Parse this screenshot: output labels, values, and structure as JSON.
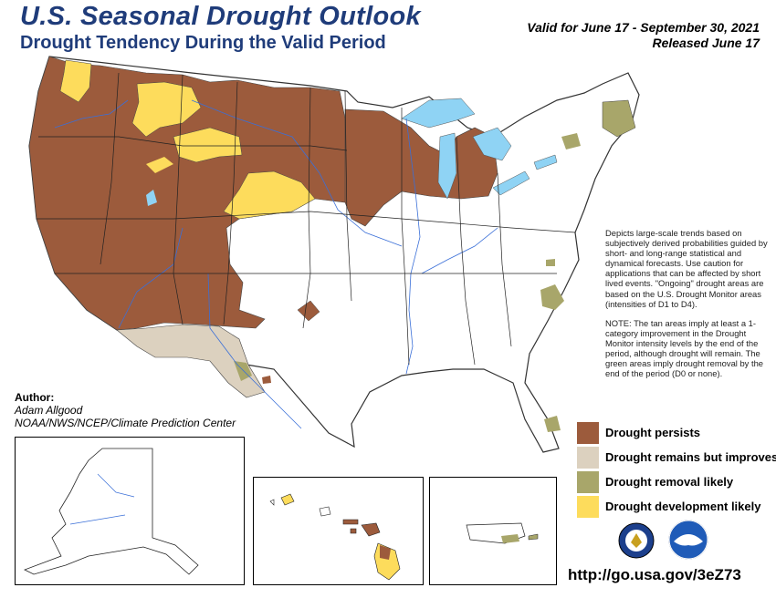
{
  "header": {
    "title": "U.S. Seasonal Drought Outlook",
    "subtitle": "Drought Tendency During the Valid Period",
    "valid_line": "Valid for June 17 - September 30, 2021",
    "released_line": "Released June 17"
  },
  "author": {
    "label": "Author:",
    "name": "Adam Allgood",
    "org": "NOAA/NWS/NCEP/Climate Prediction Center"
  },
  "notes": {
    "para1": "Depicts large-scale trends based on subjectively derived probabilities guided by short- and long-range statistical and dynamical forecasts. Use caution for applications that can be affected by short lived events. \"Ongoing\" drought areas are based on the U.S. Drought Monitor areas (intensities of D1 to D4).",
    "para2": "NOTE: The tan areas imply at least a 1-category improvement in the Drought Monitor intensity levels by the end of the period, although drought will remain. The green areas imply drought removal by the end of the period (D0 or none)."
  },
  "legend": [
    {
      "label": "Drought persists",
      "color": "#9c5b3c"
    },
    {
      "label": "Drought remains but improves",
      "color": "#dcd1bf"
    },
    {
      "label": "Drought removal likely",
      "color": "#a8a66a"
    },
    {
      "label": "Drought development likely",
      "color": "#fddc5c"
    }
  ],
  "colors": {
    "persists": "#9c5b3c",
    "improves": "#dcd1bf",
    "removal": "#a8a66a",
    "development": "#fddc5c",
    "water": "#8fd3f4",
    "river": "#3a6fd8",
    "title": "#1f3c7a"
  },
  "insets": [
    "alaska",
    "hawaii",
    "puerto-rico"
  ],
  "footer": {
    "url": "http://go.usa.gov/3eZ73"
  },
  "logos": [
    "doc-seal-icon",
    "noaa-logo-icon"
  ]
}
